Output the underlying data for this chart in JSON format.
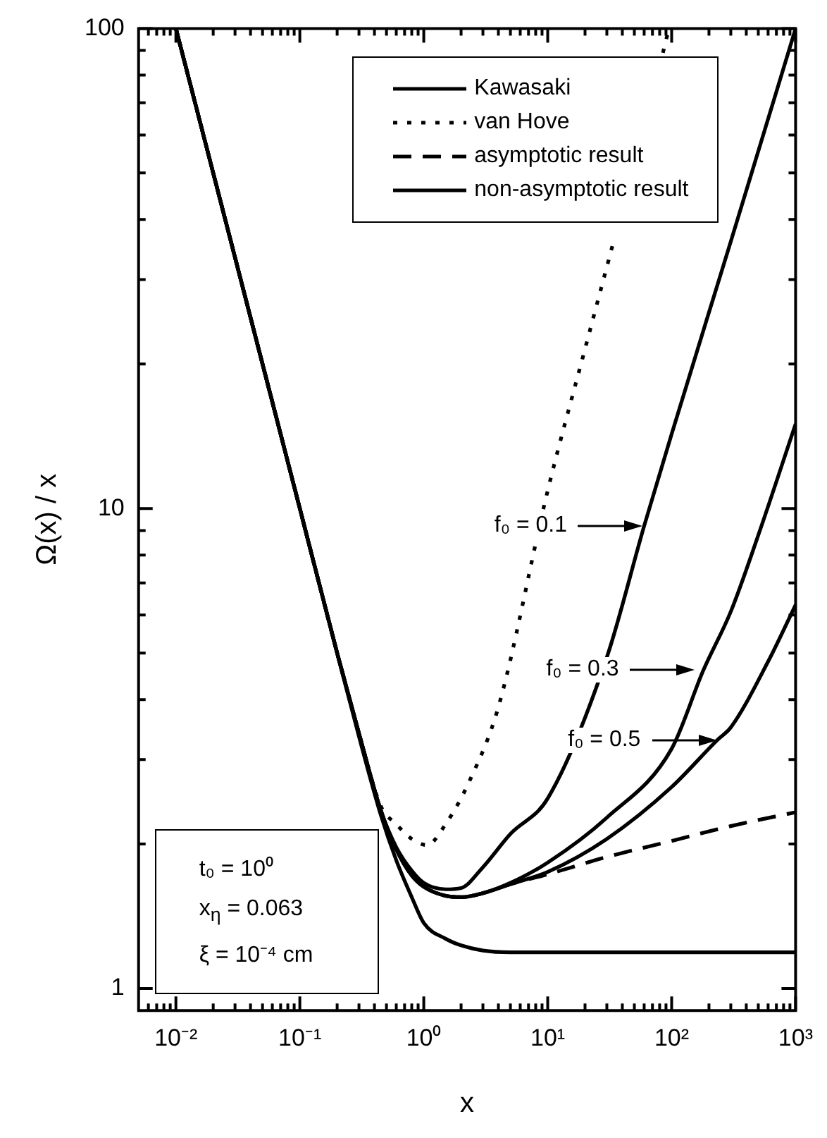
{
  "chart_data": {
    "type": "line",
    "xlabel": "x",
    "ylabel": "Ω(x) / x",
    "log": "xy",
    "xlim": [
      0.005,
      1000
    ],
    "ylim": [
      0.9,
      100
    ],
    "xticks": [
      {
        "value": 0.006,
        "label": null
      },
      {
        "value": 0.007,
        "label": null
      },
      {
        "value": 0.008,
        "label": null
      },
      {
        "value": 0.009,
        "label": null
      },
      {
        "value": 0.01,
        "label": "10⁻²"
      },
      {
        "value": 0.02,
        "label": null
      },
      {
        "value": 0.03,
        "label": null
      },
      {
        "value": 0.04,
        "label": null
      },
      {
        "value": 0.05,
        "label": null
      },
      {
        "value": 0.06,
        "label": null
      },
      {
        "value": 0.07,
        "label": null
      },
      {
        "value": 0.08,
        "label": null
      },
      {
        "value": 0.09,
        "label": null
      },
      {
        "value": 0.1,
        "label": "10⁻¹"
      },
      {
        "value": 0.2,
        "label": null
      },
      {
        "value": 0.3,
        "label": null
      },
      {
        "value": 0.4,
        "label": null
      },
      {
        "value": 0.5,
        "label": null
      },
      {
        "value": 0.6,
        "label": null
      },
      {
        "value": 0.7,
        "label": null
      },
      {
        "value": 0.8,
        "label": null
      },
      {
        "value": 0.9,
        "label": null
      },
      {
        "value": 1,
        "label": "10⁰"
      },
      {
        "value": 2,
        "label": null
      },
      {
        "value": 3,
        "label": null
      },
      {
        "value": 4,
        "label": null
      },
      {
        "value": 5,
        "label": null
      },
      {
        "value": 6,
        "label": null
      },
      {
        "value": 7,
        "label": null
      },
      {
        "value": 8,
        "label": null
      },
      {
        "value": 9,
        "label": null
      },
      {
        "value": 10,
        "label": "10¹"
      },
      {
        "value": 20,
        "label": null
      },
      {
        "value": 30,
        "label": null
      },
      {
        "value": 40,
        "label": null
      },
      {
        "value": 50,
        "label": null
      },
      {
        "value": 60,
        "label": null
      },
      {
        "value": 70,
        "label": null
      },
      {
        "value": 80,
        "label": null
      },
      {
        "value": 90,
        "label": null
      },
      {
        "value": 100,
        "label": "10²"
      },
      {
        "value": 200,
        "label": null
      },
      {
        "value": 300,
        "label": null
      },
      {
        "value": 400,
        "label": null
      },
      {
        "value": 500,
        "label": null
      },
      {
        "value": 600,
        "label": null
      },
      {
        "value": 700,
        "label": null
      },
      {
        "value": 800,
        "label": null
      },
      {
        "value": 900,
        "label": null
      },
      {
        "value": 1000,
        "label": "10³"
      }
    ],
    "yticks": [
      1,
      {
        "value": 2,
        "label": null
      },
      {
        "value": 3,
        "label": null
      },
      {
        "value": 4,
        "label": null
      },
      {
        "value": 5,
        "label": null
      },
      {
        "value": 6,
        "label": null
      },
      {
        "value": 7,
        "label": null
      },
      {
        "value": 8,
        "label": null
      },
      {
        "value": 9,
        "label": null
      },
      10,
      {
        "value": 20,
        "label": null
      },
      {
        "value": 30,
        "label": null
      },
      {
        "value": 40,
        "label": null
      },
      {
        "value": 50,
        "label": null
      },
      {
        "value": 60,
        "label": null
      },
      {
        "value": 70,
        "label": null
      },
      {
        "value": 80,
        "label": null
      },
      {
        "value": 90,
        "label": null
      },
      100
    ],
    "legend": "top right",
    "grid": false,
    "series": [
      {
        "name": "Kawasaki",
        "color": "#000000",
        "line_style": "solid",
        "x": [
          0.01,
          0.02,
          0.05,
          0.1,
          0.2,
          0.3,
          0.45,
          0.6,
          0.8,
          1,
          1.5,
          2,
          3,
          5,
          10,
          1000
        ],
        "values": [
          100,
          50,
          20,
          10,
          5,
          3.35,
          2.3,
          1.85,
          1.55,
          1.37,
          1.27,
          1.23,
          1.2,
          1.19,
          1.19,
          1.19
        ]
      },
      {
        "name": "van Hove",
        "color": "#000000",
        "line_style": "dotted",
        "x": [
          0.01,
          0.02,
          0.05,
          0.1,
          0.2,
          0.3,
          0.45,
          0.6,
          0.8,
          1.06,
          1.5,
          2.36,
          4,
          10,
          20,
          34,
          50,
          85,
          95
        ],
        "values": [
          100,
          50,
          20,
          10,
          5,
          3.4,
          2.4,
          2.2,
          2.05,
          1.99,
          2.2,
          2.72,
          3.86,
          10.9,
          21.5,
          36,
          null,
          89,
          100
        ]
      },
      {
        "name": "asymptotic result",
        "color": "#000000",
        "line_style": "dashed",
        "x": [
          0.01,
          0.02,
          0.05,
          0.1,
          0.2,
          0.3,
          0.45,
          0.6,
          0.8,
          1,
          1.5,
          2,
          3,
          5,
          10,
          30,
          100,
          300,
          1000
        ],
        "values": [
          100,
          50,
          20,
          10,
          5,
          3.4,
          2.35,
          1.95,
          1.72,
          1.63,
          1.56,
          1.55,
          1.58,
          1.65,
          1.73,
          1.88,
          2.03,
          2.18,
          2.33
        ]
      },
      {
        "name": "non-asymptotic result",
        "color": "#000000",
        "line_style": "solid",
        "x": [
          0.01,
          0.02,
          0.05,
          0.1,
          0.2,
          0.3,
          0.45,
          0.6,
          0.8,
          1,
          1.5,
          2,
          3,
          5,
          10,
          30,
          60,
          100,
          300,
          1000
        ],
        "values": [
          100,
          50,
          20,
          10,
          5,
          3.4,
          2.35,
          1.97,
          1.76,
          1.66,
          1.61,
          1.62,
          1.79,
          2.1,
          2.49,
          4.9,
          9.2,
          14.3,
          36,
          100
        ]
      },
      {
        "color": "#000000",
        "line_style": "solid",
        "x": [
          0.01,
          0.02,
          0.05,
          0.1,
          0.2,
          0.3,
          0.45,
          0.6,
          0.8,
          1,
          1.5,
          2,
          3,
          5,
          10,
          30,
          100,
          180,
          300,
          500,
          1000
        ],
        "values": [
          100,
          50,
          20,
          10,
          5,
          3.4,
          2.35,
          1.95,
          1.72,
          1.63,
          1.56,
          1.55,
          1.58,
          1.66,
          1.83,
          2.27,
          3.16,
          4.6,
          6.1,
          8.8,
          15
        ]
      },
      {
        "color": "#000000",
        "line_style": "solid",
        "x": [
          0.01,
          0.02,
          0.05,
          0.1,
          0.2,
          0.3,
          0.45,
          0.6,
          0.8,
          1,
          1.5,
          2,
          3,
          5,
          10,
          30,
          100,
          235,
          300,
          600,
          1000
        ],
        "values": [
          100,
          50,
          20,
          10,
          5,
          3.4,
          2.35,
          1.95,
          1.72,
          1.63,
          1.56,
          1.55,
          1.58,
          1.65,
          1.75,
          2.05,
          2.63,
          3.3,
          3.5,
          4.8,
          6.3
        ]
      }
    ],
    "annotations": [
      "f₀ = 0.1",
      "f₀ = 0.3",
      "f₀ = 0.5",
      "t₀ = 10⁰",
      "x$_{η}$ = 0.063",
      "ξ = 10⁻⁴ cm"
    ]
  }
}
